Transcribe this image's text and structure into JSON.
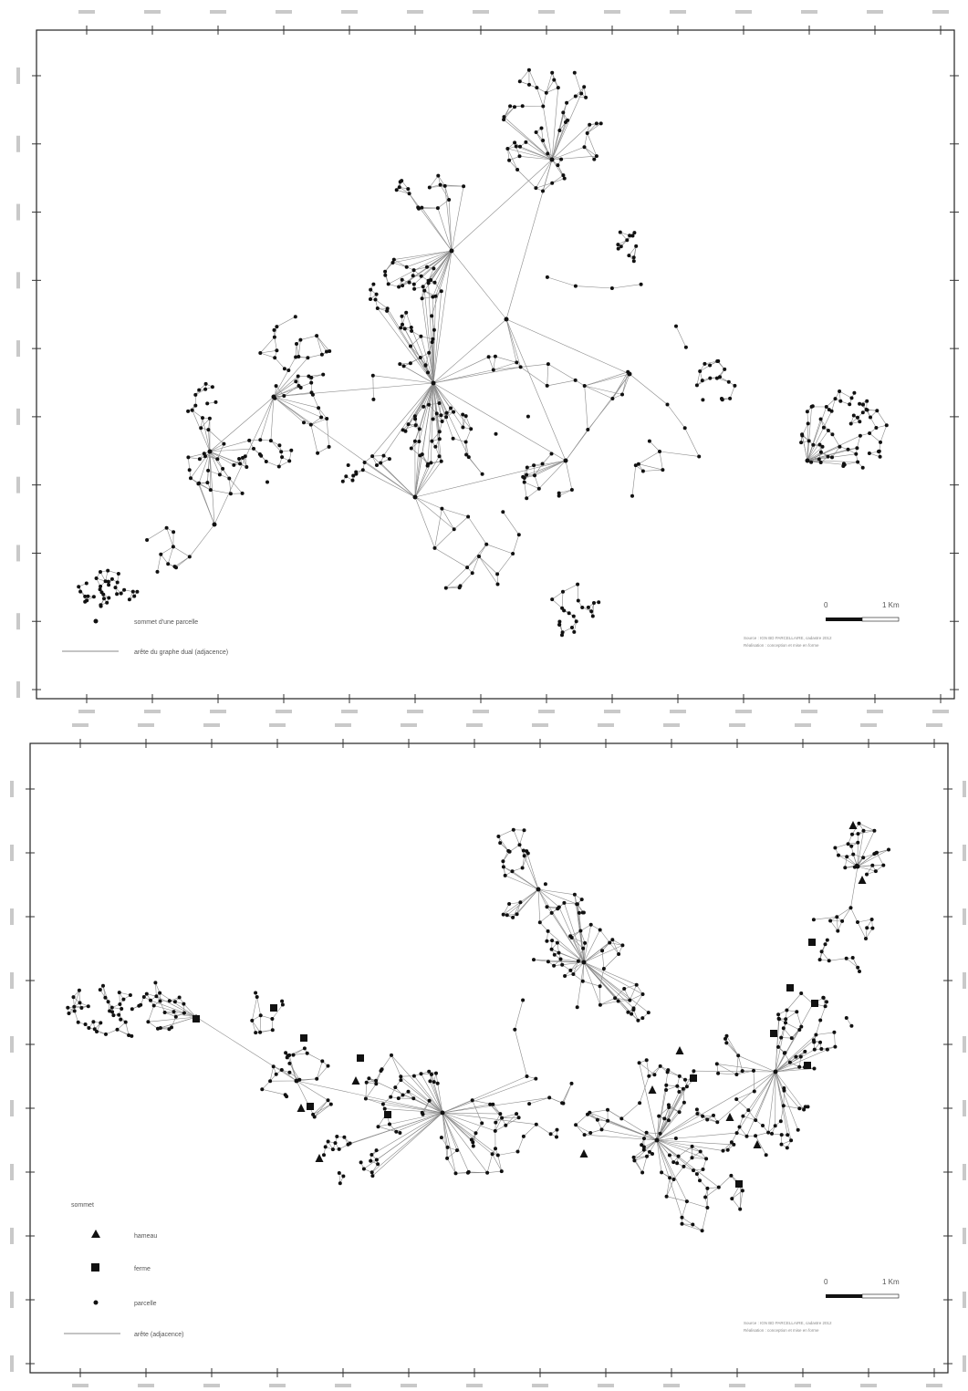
{
  "maps": [
    {
      "id": "map1",
      "legend": [
        {
          "symbol": "node-dot",
          "label": "sommet d'une parcelle"
        },
        {
          "symbol": "edge-line",
          "label": "arête du graphe dual (adjacence)"
        }
      ],
      "scale": {
        "zero": "0",
        "end": "1 Km"
      },
      "source_lines": [
        "Source : IGN BD PARCELLAIRE, cadastre 2012",
        "Réalisation : conception et mise en forme"
      ],
      "graph_seed": 11
    },
    {
      "id": "map2",
      "legend_title": "sommet",
      "legend": [
        {
          "symbol": "triangle",
          "label": "hameau"
        },
        {
          "symbol": "square",
          "label": "ferme"
        },
        {
          "symbol": "node-dot",
          "label": "parcelle"
        },
        {
          "symbol": "edge-line",
          "label": "arête (adjacence)"
        }
      ],
      "scale": {
        "zero": "0",
        "end": "1 Km"
      },
      "source_lines": [
        "Source : IGN BD PARCELLAIRE, cadastre 2012",
        "Réalisation : conception et mise en forme"
      ],
      "graph_seed": 29
    }
  ],
  "colors": {
    "frame": "#222222",
    "edge": "#8a8a8a",
    "node": "#111111"
  }
}
